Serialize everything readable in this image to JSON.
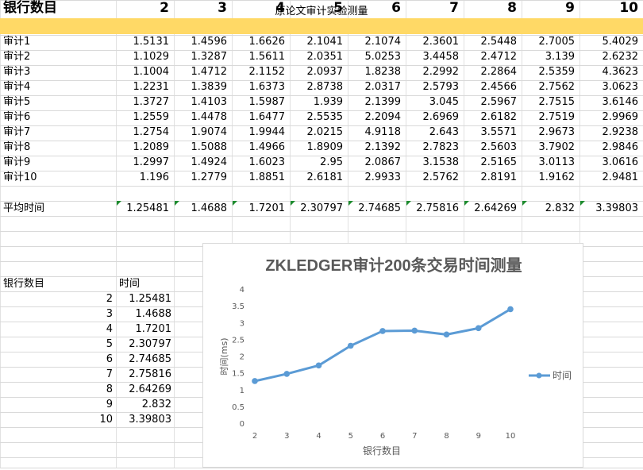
{
  "sheet_title": "原论文审计实验测量",
  "header": {
    "label": "银行数目",
    "columns": [
      "2",
      "3",
      "4",
      "5",
      "6",
      "7",
      "8",
      "9",
      "10"
    ]
  },
  "rows": [
    {
      "label": "审计1",
      "values": [
        "1.5131",
        "1.4596",
        "1.6626",
        "2.1041",
        "2.1074",
        "2.3601",
        "2.5448",
        "2.7005",
        "5.4029"
      ]
    },
    {
      "label": "审计2",
      "values": [
        "1.1029",
        "1.3287",
        "1.5611",
        "2.0351",
        "5.0253",
        "3.4458",
        "2.4712",
        "3.139",
        "2.6232"
      ]
    },
    {
      "label": "审计3",
      "values": [
        "1.1004",
        "1.4712",
        "2.1152",
        "2.0937",
        "1.8238",
        "2.2992",
        "2.2864",
        "2.5359",
        "4.3623"
      ]
    },
    {
      "label": "审计4",
      "values": [
        "1.2231",
        "1.3839",
        "1.6373",
        "2.8738",
        "2.0317",
        "2.5793",
        "2.4566",
        "2.7562",
        "3.0623"
      ]
    },
    {
      "label": "审计5",
      "values": [
        "1.3727",
        "1.4103",
        "1.5987",
        "1.939",
        "2.1399",
        "3.045",
        "2.5967",
        "2.7515",
        "3.6146"
      ]
    },
    {
      "label": "审计6",
      "values": [
        "1.2559",
        "1.4478",
        "1.6477",
        "2.5535",
        "2.2094",
        "2.6969",
        "2.6182",
        "2.7519",
        "2.9969"
      ]
    },
    {
      "label": "审计7",
      "values": [
        "1.2754",
        "1.9074",
        "1.9944",
        "2.0215",
        "4.9118",
        "2.643",
        "3.5571",
        "2.9673",
        "2.9238"
      ]
    },
    {
      "label": "审计8",
      "values": [
        "1.2089",
        "1.5088",
        "1.4966",
        "1.8909",
        "2.1392",
        "2.7823",
        "2.5603",
        "3.7902",
        "2.9846"
      ]
    },
    {
      "label": "审计9",
      "values": [
        "1.2997",
        "1.4924",
        "1.6023",
        "2.95",
        "2.0867",
        "3.1538",
        "2.5165",
        "3.0113",
        "3.0616"
      ]
    },
    {
      "label": "审计10",
      "values": [
        "1.196",
        "1.2779",
        "1.8851",
        "2.6181",
        "2.9933",
        "2.5762",
        "2.8191",
        "1.9162",
        "2.9481"
      ]
    }
  ],
  "average": {
    "label": "平均时间",
    "values": [
      "1.25481",
      "1.4688",
      "1.7201",
      "2.30797",
      "2.74685",
      "2.75816",
      "2.64269",
      "2.832",
      "3.39803"
    ]
  },
  "summary": {
    "col1_header": "银行数目",
    "col2_header": "时间",
    "rows": [
      {
        "n": "2",
        "t": "1.25481"
      },
      {
        "n": "3",
        "t": "1.4688"
      },
      {
        "n": "4",
        "t": "1.7201"
      },
      {
        "n": "5",
        "t": "2.30797"
      },
      {
        "n": "6",
        "t": "2.74685"
      },
      {
        "n": "7",
        "t": "2.75816"
      },
      {
        "n": "8",
        "t": "2.64269"
      },
      {
        "n": "9",
        "t": "2.832"
      },
      {
        "n": "10",
        "t": "3.39803"
      }
    ]
  },
  "colors": {
    "header_fill": "#ffd966",
    "series": "#5b9bd5",
    "error_marker": "#1e8c2f"
  },
  "chart_data": {
    "type": "line",
    "title": "ZKLEDGER审计200条交易时间测量",
    "xlabel": "银行数目",
    "ylabel": "时间(ms)",
    "categories": [
      "2",
      "3",
      "4",
      "5",
      "6",
      "7",
      "8",
      "9",
      "10"
    ],
    "series": [
      {
        "name": "时间",
        "values": [
          1.25481,
          1.4688,
          1.7201,
          2.30797,
          2.74685,
          2.75816,
          2.64269,
          2.832,
          3.39803
        ]
      }
    ],
    "ylim": [
      0,
      4
    ],
    "yticks": [
      "0",
      "0.5",
      "1",
      "1.5",
      "2",
      "2.5",
      "3",
      "3.5",
      "4"
    ],
    "grid": false,
    "legend": "right"
  }
}
